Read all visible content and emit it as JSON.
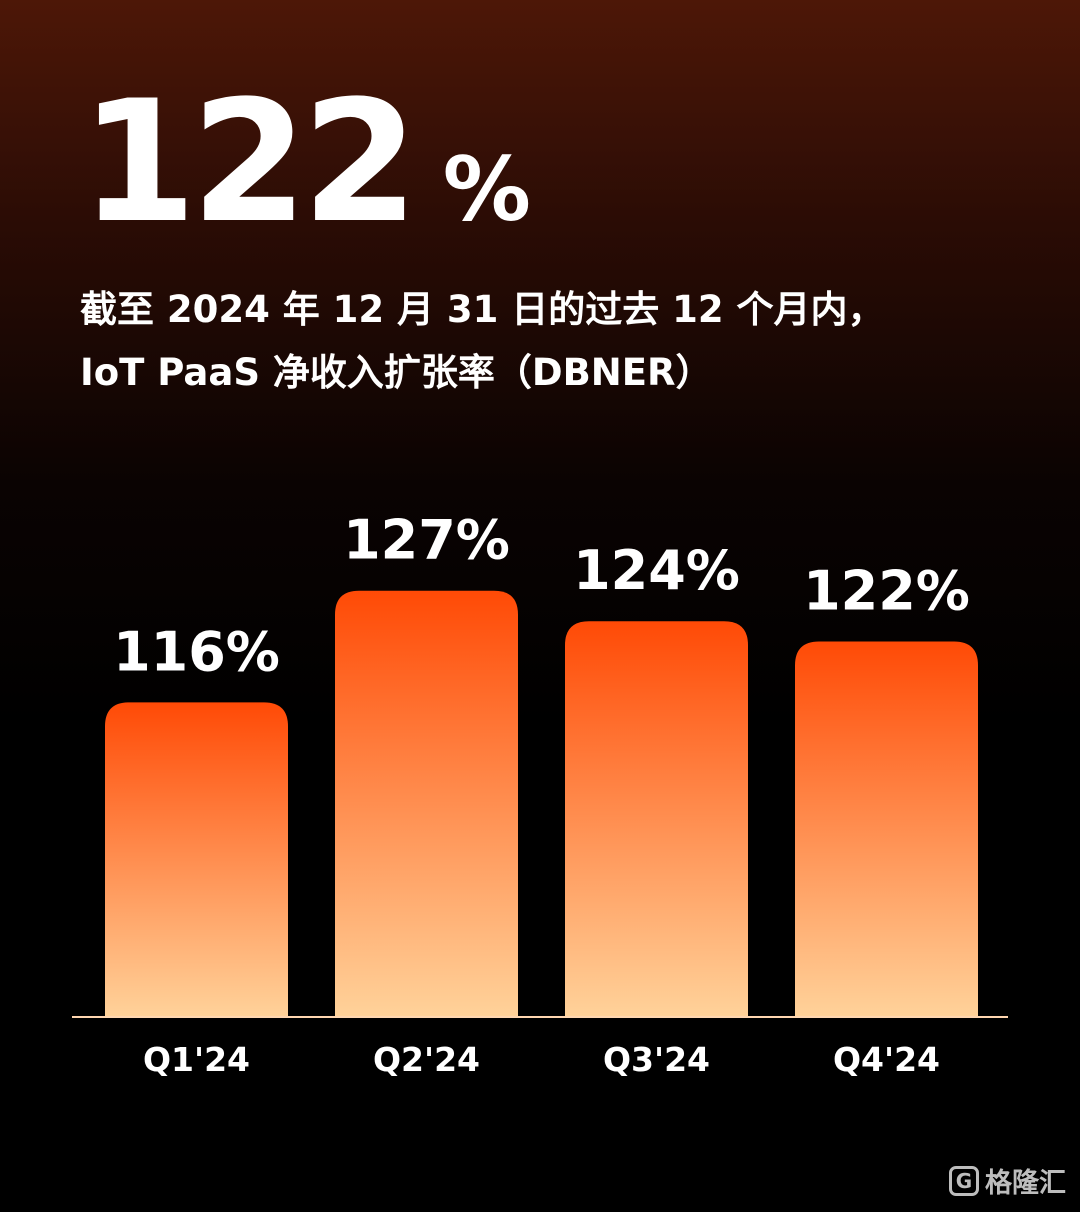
{
  "header": {
    "value": "122",
    "unit": "%",
    "subtitle_line1": "截至 2024 年 12 月 31 日的过去 12 个月内，",
    "subtitle_line2": "IoT PaaS 净收入扩张率（DBNER）"
  },
  "chart_data": {
    "type": "bar",
    "categories": [
      "Q1'24",
      "Q2'24",
      "Q3'24",
      "Q4'24"
    ],
    "values": [
      116,
      127,
      124,
      122
    ],
    "data_labels": [
      "116%",
      "127%",
      "124%",
      "122%"
    ],
    "title": "",
    "xlabel": "",
    "ylabel": "",
    "ylim": [
      85,
      132
    ],
    "grid": false,
    "legend": "none",
    "bar_gradient": [
      "#ff4a06",
      "#ffd29a"
    ]
  },
  "watermark": {
    "icon_glyph": "G",
    "text": "格隆汇"
  }
}
